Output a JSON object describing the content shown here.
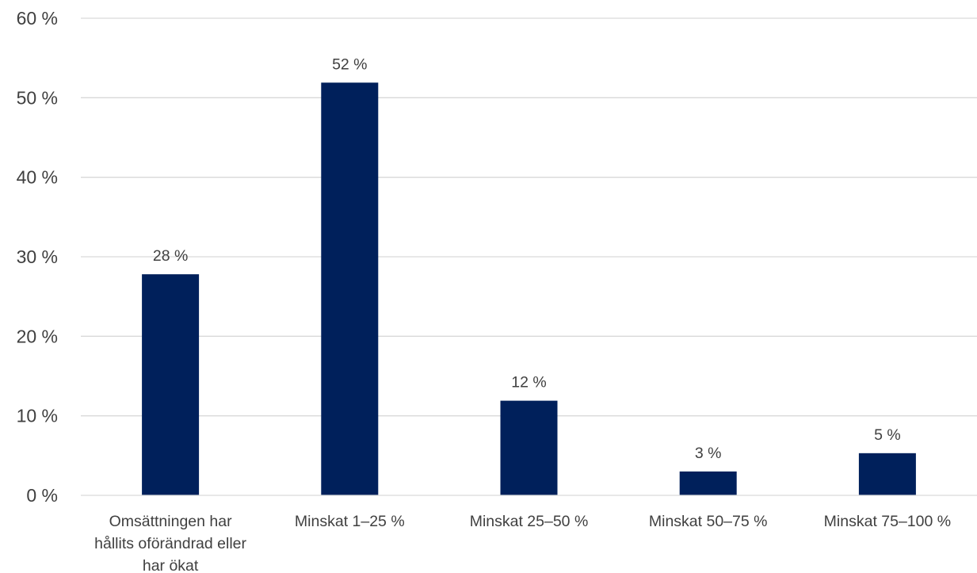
{
  "chart_data": {
    "type": "bar",
    "title": "",
    "xlabel": "",
    "ylabel": "",
    "categories": [
      "Omsättningen har hållits oförändrad eller har ökat",
      "Minskat 1–25 %",
      "Minskat 25–50 %",
      "Minskat 50–75 %",
      "Minskat 75–100 %"
    ],
    "category_lines": [
      [
        "Omsättningen har",
        "hållits oförändrad eller",
        "har ökat"
      ],
      [
        "Minskat 1–25 %"
      ],
      [
        "Minskat 25–50 %"
      ],
      [
        "Minskat 50–75 %"
      ],
      [
        "Minskat 75–100 %"
      ]
    ],
    "values": [
      27.8,
      51.9,
      11.9,
      3.0,
      5.3
    ],
    "data_labels": [
      "28 %",
      "52 %",
      "12 %",
      "3 %",
      "5 %"
    ],
    "ylim": [
      0,
      60
    ],
    "y_ticks": [
      0,
      10,
      20,
      30,
      40,
      50,
      60
    ],
    "y_tick_labels": [
      "0 %",
      "10 %",
      "20 %",
      "30 %",
      "40 %",
      "50 %",
      "60 %"
    ],
    "grid": true,
    "legend": "none",
    "bar_color": "#00205b"
  }
}
